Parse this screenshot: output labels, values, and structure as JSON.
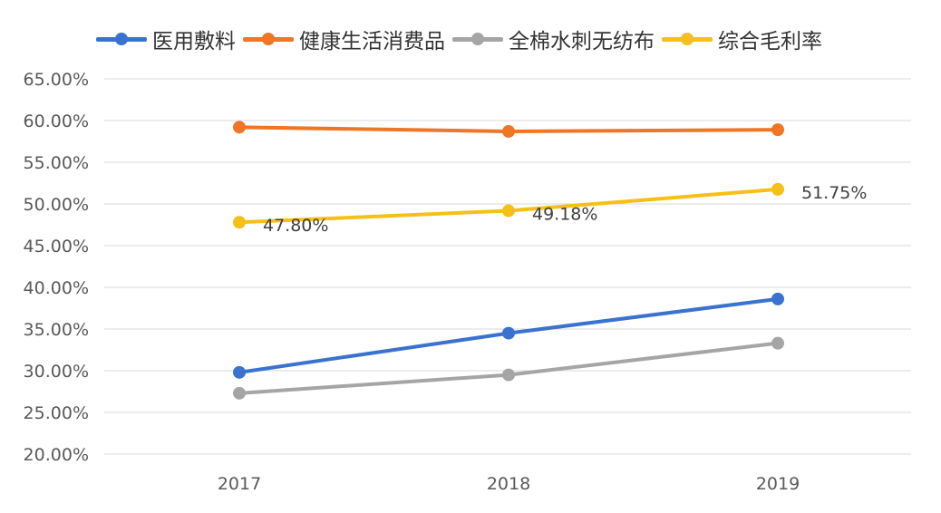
{
  "chart_data": {
    "type": "line",
    "title": "",
    "xlabel": "",
    "ylabel": "",
    "categories": [
      "2017",
      "2018",
      "2019"
    ],
    "ylim": [
      20,
      65
    ],
    "yticks": [
      "20.00%",
      "25.00%",
      "30.00%",
      "35.00%",
      "40.00%",
      "45.00%",
      "50.00%",
      "55.00%",
      "60.00%",
      "65.00%"
    ],
    "grid": true,
    "legend_position": "top",
    "series": [
      {
        "name": "医用敷料",
        "color": "#3a72d0",
        "values": [
          29.8,
          34.5,
          38.6
        ]
      },
      {
        "name": "健康生活消费品",
        "color": "#ee7625",
        "values": [
          59.2,
          58.7,
          58.9
        ]
      },
      {
        "name": "全棉水刺无纺布",
        "color": "#a5a5a5",
        "values": [
          27.3,
          29.5,
          33.3
        ]
      },
      {
        "name": "综合毛利率",
        "color": "#f5c017",
        "values": [
          47.8,
          49.18,
          51.75
        ],
        "data_labels": [
          "47.80%",
          "49.18%",
          "51.75%"
        ]
      }
    ]
  }
}
